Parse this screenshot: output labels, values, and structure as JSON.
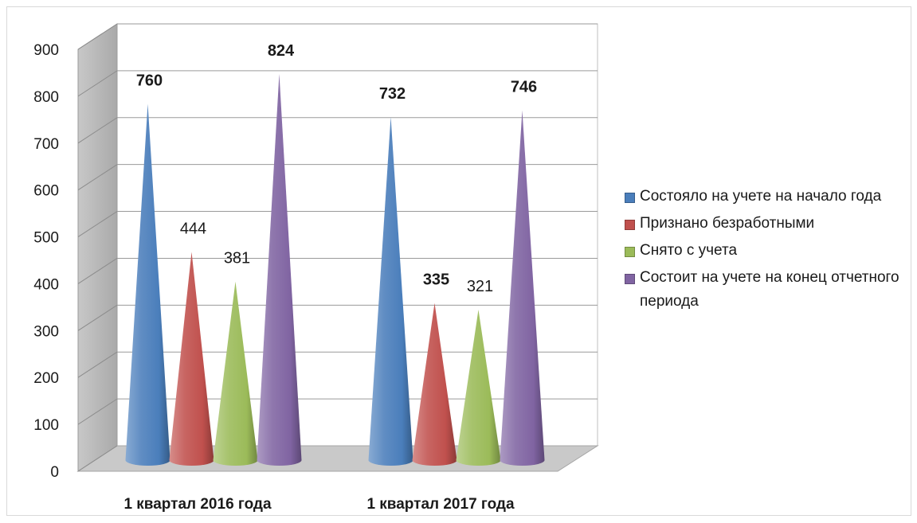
{
  "chart_data": {
    "type": "bar",
    "shape": "cone",
    "title": "",
    "xlabel": "",
    "ylabel": "",
    "ylim": [
      0,
      900
    ],
    "yticks": [
      0,
      100,
      200,
      300,
      400,
      500,
      600,
      700,
      800,
      900
    ],
    "grid": true,
    "legend_position": "right",
    "categories": [
      "1 квартал 2016 года",
      "1 квартал 2017 года"
    ],
    "series": [
      {
        "name": "Состояло на учете на начало года",
        "color": "#4a7ebb",
        "values": [
          760,
          732
        ],
        "labels": [
          "760",
          "732"
        ],
        "label_bold": true
      },
      {
        "name": "Признано безработными",
        "color": "#c0504d",
        "values": [
          444,
          335
        ],
        "labels": [
          "444",
          "335"
        ],
        "label_bold": [
          false,
          true
        ]
      },
      {
        "name": "Снято с учета",
        "color": "#9bbb59",
        "values": [
          381,
          321
        ],
        "labels": [
          "381",
          "321"
        ],
        "label_bold": false
      },
      {
        "name": "Состоит на учете на конец отчетного периода",
        "color": "#8064a2",
        "values": [
          824,
          746
        ],
        "labels": [
          "824",
          "746"
        ],
        "label_bold": true
      }
    ]
  }
}
